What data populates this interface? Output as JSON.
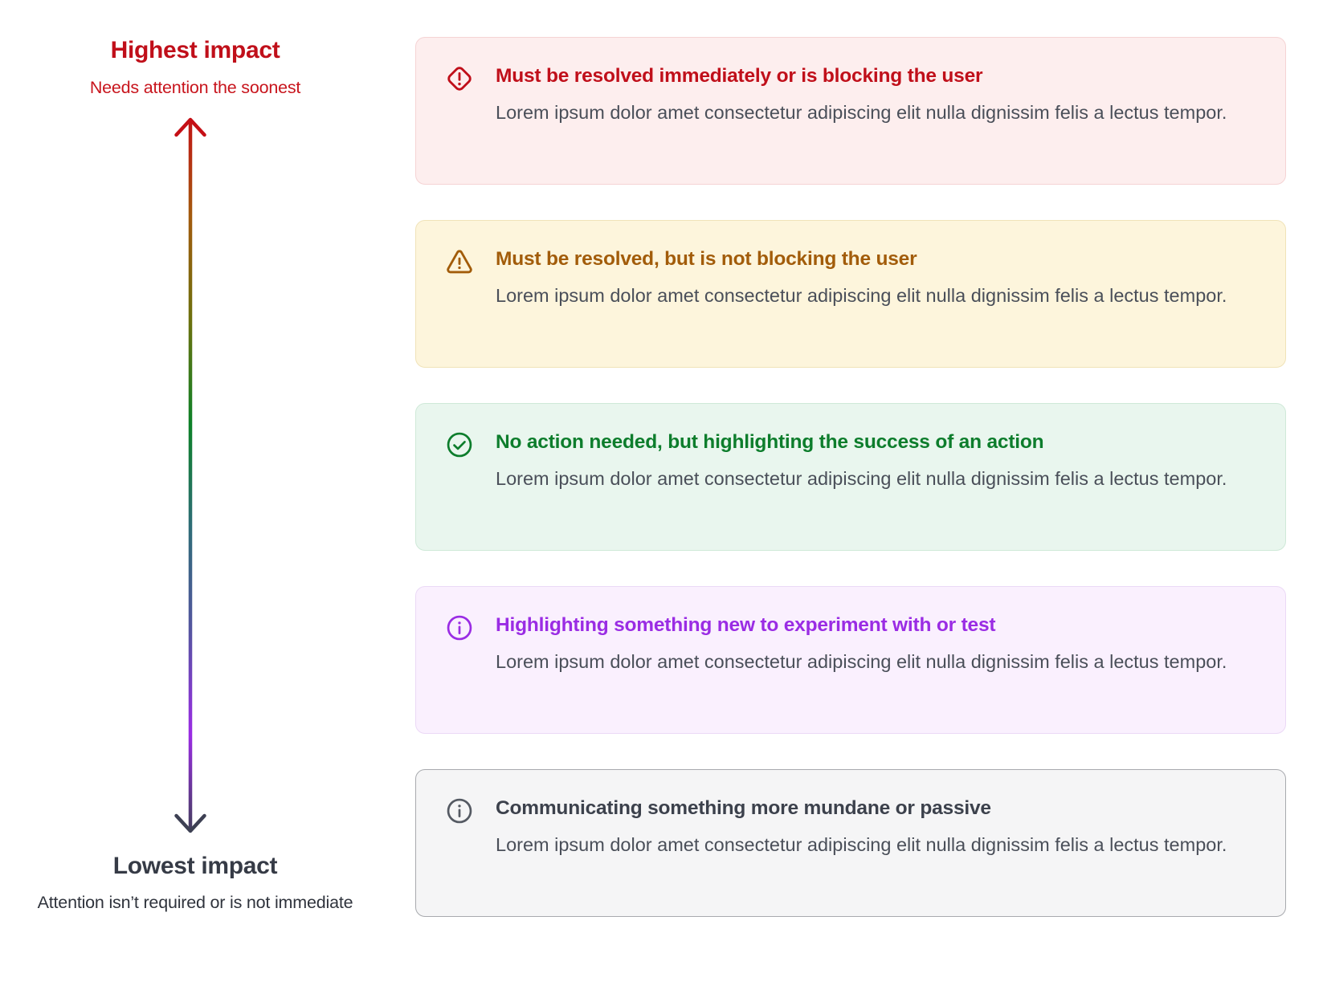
{
  "impact_scale": {
    "high": {
      "title": "Highest impact",
      "subtitle": "Needs attention the soonest",
      "title_color": "#c00f1a",
      "subtitle_color": "#c8151d"
    },
    "low": {
      "title": "Lowest impact",
      "subtitle": "Attention isn’t required or is not immediate",
      "title_color": "#363b46",
      "subtitle_color": "#2f333c"
    },
    "arrow_gradient": [
      "#c50f16",
      "#a35b0e",
      "#6d710e",
      "#0d8128",
      "#2e6d77",
      "#5555a0",
      "#9a2ce4",
      "#3d4053"
    ]
  },
  "cards_body_color": "#4a4f59",
  "cards": [
    {
      "kind": "critical",
      "icon": "alert-diamond-icon",
      "title": "Must be resolved immediately or is blocking the user",
      "body": "Lorem ipsum dolor amet consectetur adipiscing elit nulla dignissim felis a lectus tempor.",
      "colors": {
        "background": "#fdeeee",
        "border": "#f5d3d4",
        "accent": "#c00f1a"
      }
    },
    {
      "kind": "warning",
      "icon": "alert-triangle-icon",
      "title": "Must be resolved, but is not blocking the user",
      "body": "Lorem ipsum dolor amet consectetur adipiscing elit nulla dignissim felis a lectus tempor.",
      "colors": {
        "background": "#fdf5dc",
        "border": "#f0e3b8",
        "accent": "#a25c0a"
      }
    },
    {
      "kind": "success",
      "icon": "check-circle-icon",
      "title": "No action needed, but highlighting the success of an action",
      "body": "Lorem ipsum dolor amet consectetur adipiscing elit nulla dignissim felis a lectus tempor.",
      "colors": {
        "background": "#e9f6ee",
        "border": "#cfe9d8",
        "accent": "#0d7d2c"
      }
    },
    {
      "kind": "new",
      "icon": "info-circle-icon",
      "title": "Highlighting something new to experiment with or test",
      "body": "Lorem ipsum dolor amet consectetur adipiscing elit nulla dignissim felis a lectus tempor.",
      "colors": {
        "background": "#faf0fe",
        "border": "#ebd9f6",
        "accent": "#9a2ce4"
      }
    },
    {
      "kind": "neutral",
      "icon": "info-circle-icon",
      "title": "Communicating something more mundane or passive",
      "body": "Lorem ipsum dolor amet consectetur adipiscing elit nulla dignissim felis a lectus tempor.",
      "colors": {
        "background": "#f5f5f6",
        "border": "#a8aaae",
        "accent": "#3c414c",
        "icon": "#555a63"
      }
    }
  ]
}
